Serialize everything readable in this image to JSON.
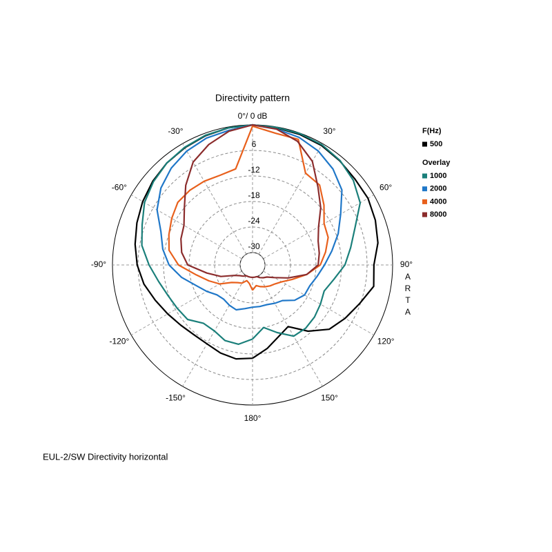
{
  "chart_data": {
    "type": "polar",
    "title": "Directivity pattern",
    "footer": "EUL-2/SW  Directivity horizontal",
    "watermark": "ARTA",
    "legend_title": "F(Hz)",
    "overlay_label": "Overlay",
    "rlim": [
      -30,
      0
    ],
    "rticks": [
      {
        "value": -6,
        "label": "6"
      },
      -12,
      -18,
      -24,
      -30
    ],
    "thetaticks": [
      {
        "value": 0,
        "label": "0°/ 0 dB"
      },
      {
        "value": 30,
        "label": "30°"
      },
      {
        "value": 60,
        "label": "60°"
      },
      {
        "value": 90,
        "label": "90°"
      },
      {
        "value": 120,
        "label": "120°"
      },
      {
        "value": 150,
        "label": "150°"
      },
      {
        "value": 180,
        "label": "180°"
      },
      {
        "value": -150,
        "label": "-150°"
      },
      {
        "value": -120,
        "label": "-120°"
      },
      {
        "value": -90,
        "label": "-90°"
      },
      {
        "value": -60,
        "label": "-60°"
      },
      {
        "value": -30,
        "label": "-30°"
      }
    ],
    "theta": [
      -180,
      -170,
      -160,
      -150,
      -140,
      -130,
      -120,
      -110,
      -100,
      -90,
      -80,
      -70,
      -60,
      -50,
      -40,
      -30,
      -20,
      -10,
      0,
      10,
      20,
      30,
      40,
      50,
      60,
      70,
      80,
      90,
      100,
      110,
      120,
      130,
      140,
      150,
      160,
      170,
      180
    ],
    "series": [
      {
        "name": "500",
        "color": "#000000",
        "values": [
          -11,
          -10.5,
          -10.9,
          -11.5,
          -11.5,
          -10.9,
          -9.9,
          -8.6,
          -7,
          -5.8,
          -4.9,
          -4,
          -3.1,
          -2.3,
          -1.6,
          -1.1,
          -0.6,
          -0.2,
          0,
          -0.2,
          -0.3,
          -0.5,
          -1,
          -1.5,
          -1.6,
          -2.2,
          -3,
          -4.4,
          -4,
          -6.2,
          -7.8,
          -9.4,
          -12.6,
          -16.2,
          -15,
          -13,
          -11
        ]
      },
      {
        "name": "1000",
        "color": "#1a7f7a",
        "values": [
          -15.5,
          -14,
          -14,
          -15,
          -15,
          -13,
          -12.5,
          -11.8,
          -10.5,
          -8.6,
          -6.5,
          -5.3,
          -3.6,
          -2.5,
          -1.6,
          -1,
          -0.5,
          -0.2,
          0,
          -0.1,
          -0.1,
          -0.3,
          -0.9,
          -2,
          -3.7,
          -7.3,
          -9.5,
          -11.2,
          -13.5,
          -15,
          -14.5,
          -13.9,
          -13.5,
          -13.6,
          -16,
          -18,
          -15.5
        ]
      },
      {
        "name": "2000",
        "color": "#1f77c8",
        "values": [
          -23,
          -22.5,
          -21.7,
          -22,
          -22.4,
          -22,
          -20.5,
          -18.8,
          -16,
          -13.3,
          -11.5,
          -10,
          -7,
          -4.8,
          -3.2,
          -2,
          -1.2,
          -0.8,
          0,
          -0.5,
          -1,
          -2,
          -3.5,
          -5.5,
          -9,
          -11.5,
          -14,
          -16,
          -17.5,
          -18.6,
          -18.8,
          -20,
          -22,
          -22.5,
          -23,
          -23,
          -23
        ]
      },
      {
        "name": "4000",
        "color": "#e8601c",
        "values": [
          -27,
          -28.5,
          -29,
          -28,
          -27.5,
          -26.5,
          -24,
          -22,
          -19.5,
          -15.5,
          -13,
          -12,
          -11,
          -10,
          -10,
          -10.2,
          -10.5,
          -10,
          -0.3,
          -1.5,
          -1.5,
          -8,
          -8.4,
          -11,
          -13.5,
          -14,
          -15.5,
          -17,
          -20,
          -23,
          -25,
          -26,
          -26.5,
          -27,
          -27.5,
          -28,
          -27
        ]
      },
      {
        "name": "8000",
        "color": "#8b2c2c",
        "values": [
          -30,
          -30,
          -30,
          -30,
          -29.5,
          -29,
          -28,
          -25,
          -22,
          -17.7,
          -16,
          -15,
          -14.3,
          -12,
          -8.5,
          -5,
          -2.8,
          -1,
          0,
          -0.5,
          -2,
          -4.8,
          -9,
          -12,
          -15,
          -16.5,
          -17,
          -17.5,
          -20,
          -24,
          -27,
          -28.5,
          -29,
          -29.5,
          -30,
          -30,
          -30
        ]
      }
    ]
  }
}
